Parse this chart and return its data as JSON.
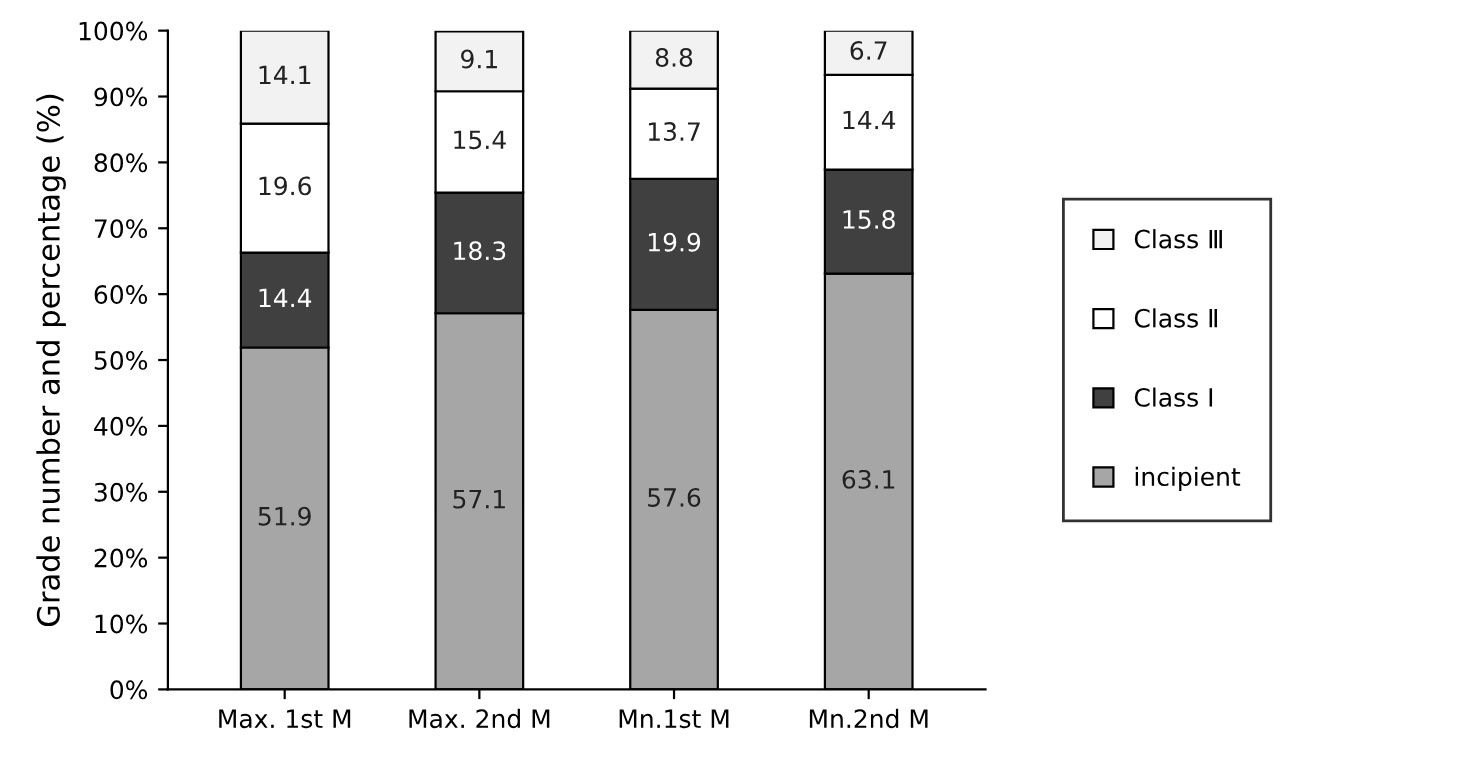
{
  "chart_data": {
    "type": "bar",
    "stacked": true,
    "ylabel": "Grade number and percentage (%)",
    "categories": [
      "Max. 1st M",
      "Max. 2nd M",
      "Mn.1st M",
      "Mn.2nd M"
    ],
    "series": [
      {
        "name": "incipient",
        "color": "#a6a6a6",
        "values": [
          51.9,
          57.1,
          57.6,
          63.1
        ]
      },
      {
        "name": "Class Ⅰ",
        "color": "#404040",
        "values": [
          14.4,
          18.3,
          19.9,
          15.8
        ]
      },
      {
        "name": "Class Ⅱ",
        "color": "#ffffff",
        "values": [
          19.6,
          15.4,
          13.7,
          14.4
        ]
      },
      {
        "name": "Class Ⅲ",
        "color": "#f2f2f2",
        "values": [
          14.1,
          9.1,
          8.8,
          6.7
        ]
      }
    ],
    "ylim": [
      0,
      100
    ],
    "yticks": [
      {
        "value": 0,
        "label": "0%"
      },
      {
        "value": 10,
        "label": "10%"
      },
      {
        "value": 20,
        "label": "20%"
      },
      {
        "value": 30,
        "label": "30%"
      },
      {
        "value": 40,
        "label": "40%"
      },
      {
        "value": 50,
        "label": "50%"
      },
      {
        "value": 60,
        "label": "60%"
      },
      {
        "value": 70,
        "label": "70%"
      },
      {
        "value": 80,
        "label": "80%"
      },
      {
        "value": 90,
        "label": "90%"
      },
      {
        "value": 100,
        "label": "100%"
      }
    ],
    "data_labels": true,
    "grid": false,
    "legend": "right"
  }
}
